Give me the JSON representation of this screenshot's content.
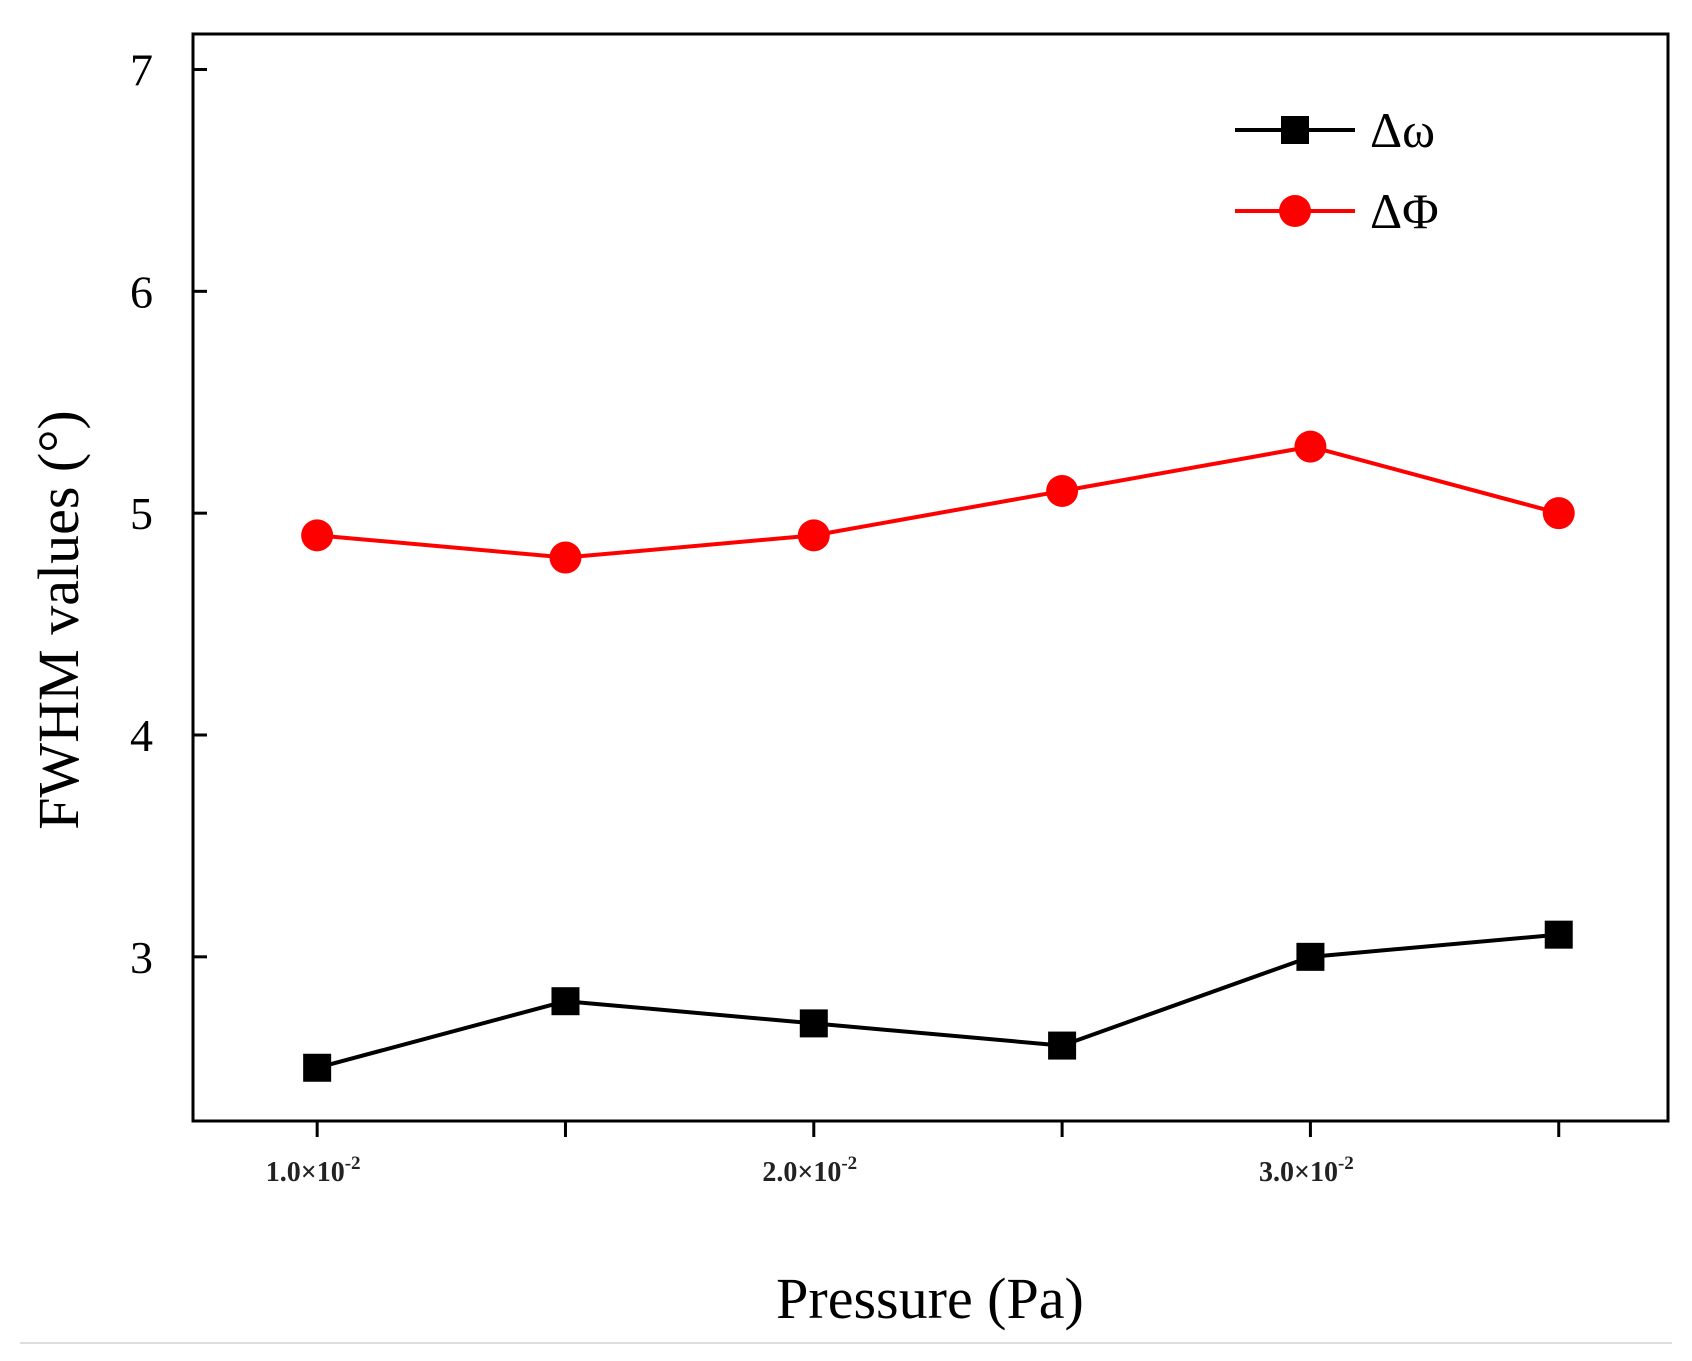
{
  "chart_data": {
    "type": "line",
    "title": "",
    "xlabel": "Pressure (Pa)",
    "ylabel": "FWHM values (°)",
    "x": [
      0.01,
      0.015,
      0.02,
      0.025,
      0.03,
      0.035
    ],
    "xlim": [
      0.0075,
      0.0372
    ],
    "ylim": [
      2.26,
      7.16
    ],
    "x_ticks": [
      {
        "value": 0.01,
        "mantissa": "1.0×10",
        "exponent": "-2"
      },
      {
        "value": 0.015,
        "mantissa": "",
        "exponent": ""
      },
      {
        "value": 0.02,
        "mantissa": "2.0×10",
        "exponent": "-2"
      },
      {
        "value": 0.025,
        "mantissa": "",
        "exponent": ""
      },
      {
        "value": 0.03,
        "mantissa": "3.0×10",
        "exponent": "-2"
      },
      {
        "value": 0.035,
        "mantissa": "",
        "exponent": ""
      }
    ],
    "y_ticks": [
      {
        "value": 3,
        "label": "3"
      },
      {
        "value": 4,
        "label": "4"
      },
      {
        "value": 5,
        "label": "5"
      },
      {
        "value": 6,
        "label": "6"
      },
      {
        "value": 7,
        "label": "7"
      }
    ],
    "grid": false,
    "legend_position": "top-right",
    "series": [
      {
        "name": "Δω",
        "color": "#000000",
        "marker": "square",
        "values": [
          2.5,
          2.8,
          2.7,
          2.6,
          3.0,
          3.1
        ]
      },
      {
        "name": "ΔΦ",
        "color": "#ff0000",
        "marker": "circle",
        "values": [
          4.9,
          4.8,
          4.9,
          5.1,
          5.3,
          5.0
        ]
      }
    ]
  }
}
